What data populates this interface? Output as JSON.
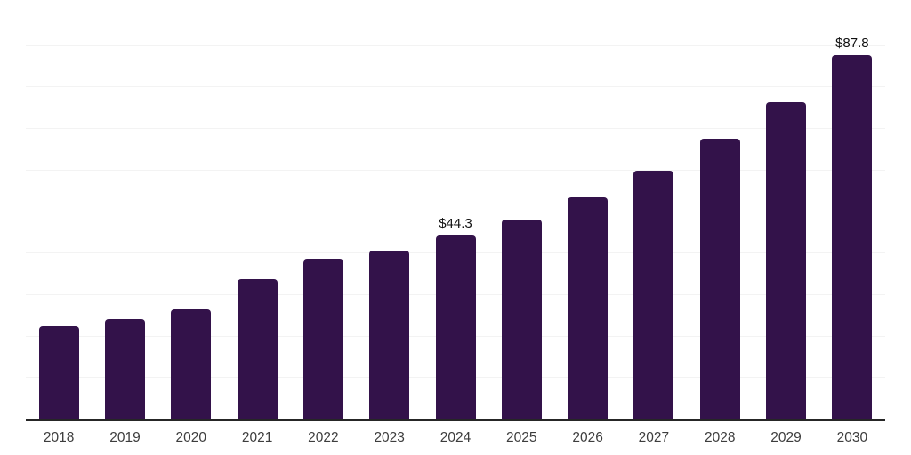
{
  "chart_data": {
    "type": "bar",
    "title": "",
    "xlabel": "",
    "ylabel": "",
    "categories": [
      "2018",
      "2019",
      "2020",
      "2021",
      "2022",
      "2023",
      "2024",
      "2025",
      "2026",
      "2027",
      "2028",
      "2029",
      "2030"
    ],
    "values": [
      22.4,
      24.3,
      26.6,
      33.8,
      38.5,
      40.6,
      44.3,
      48.2,
      53.6,
      59.9,
      67.6,
      76.5,
      87.8
    ],
    "bar_labels": [
      "",
      "",
      "",
      "",
      "",
      "",
      "$44.3",
      "",
      "",
      "",
      "",
      "",
      "$87.8"
    ],
    "ylim": [
      0,
      100
    ],
    "gridline_step": 10,
    "grid": "horizontal",
    "legend": "none",
    "y_axis_labels_visible": false,
    "colors": {
      "bar": "#33124a",
      "gridline": "#f3f3f3",
      "axis_line": "#262626",
      "tick_label": "#3d3d3d",
      "value_label": "#111111",
      "background": "#ffffff"
    }
  }
}
